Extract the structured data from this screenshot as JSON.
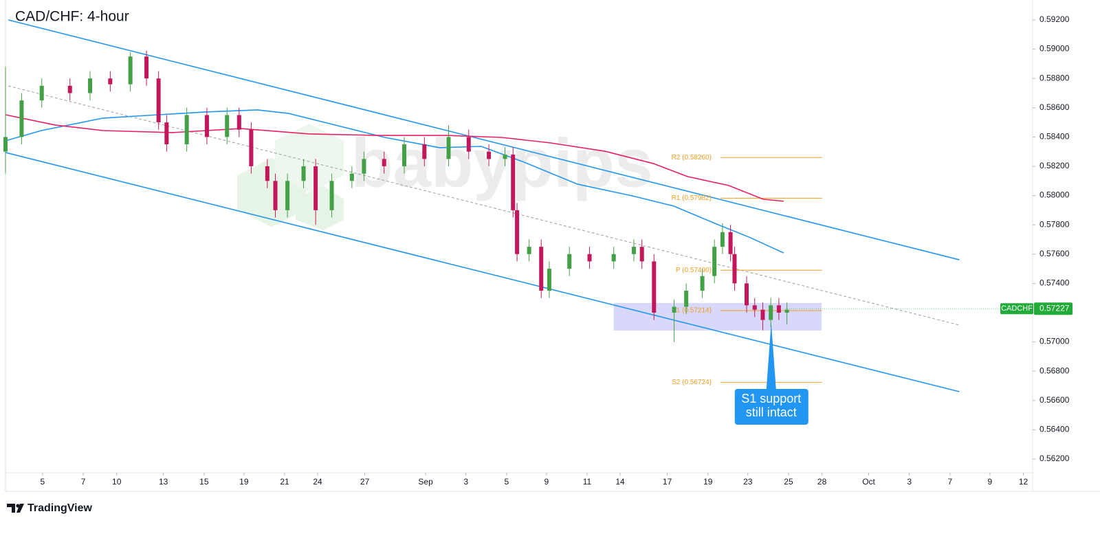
{
  "chart_data": {
    "type": "candlestick",
    "title": "CAD/CHF: 4-hour",
    "watermark": "babypips",
    "brand": "TradingView",
    "xlim": [
      0,
      255
    ],
    "ylim": [
      0.56106,
      0.59336
    ],
    "xticks": [
      {
        "value": 9.2,
        "label": "5"
      },
      {
        "value": 19.3,
        "label": "7"
      },
      {
        "value": 27.6,
        "label": "10"
      },
      {
        "value": 39.2,
        "label": "13"
      },
      {
        "value": 49.3,
        "label": "15"
      },
      {
        "value": 59.2,
        "label": "19"
      },
      {
        "value": 69.3,
        "label": "21"
      },
      {
        "value": 77.5,
        "label": "24"
      },
      {
        "value": 89.2,
        "label": "27"
      },
      {
        "value": 104.3,
        "label": "Sep"
      },
      {
        "value": 114.3,
        "label": "3"
      },
      {
        "value": 124.4,
        "label": "5"
      },
      {
        "value": 134.3,
        "label": "9"
      },
      {
        "value": 144.4,
        "label": "11"
      },
      {
        "value": 152.6,
        "label": "14"
      },
      {
        "value": 164.3,
        "label": "17"
      },
      {
        "value": 174.4,
        "label": "19"
      },
      {
        "value": 184.3,
        "label": "23"
      },
      {
        "value": 194.4,
        "label": "25"
      },
      {
        "value": 202.7,
        "label": "28"
      },
      {
        "value": 214.3,
        "label": "Oct"
      },
      {
        "value": 224.4,
        "label": "3"
      },
      {
        "value": 234.5,
        "label": "7"
      },
      {
        "value": 244.4,
        "label": "9"
      },
      {
        "value": 252.7,
        "label": "12"
      }
    ],
    "yticks": [
      {
        "value": 0.562,
        "label": "0.56200"
      },
      {
        "value": 0.564,
        "label": "0.56400"
      },
      {
        "value": 0.566,
        "label": "0.56600"
      },
      {
        "value": 0.568,
        "label": "0.56800"
      },
      {
        "value": 0.57,
        "label": "0.57000"
      },
      {
        "value": 0.572,
        "label": "0.57200"
      },
      {
        "value": 0.574,
        "label": "0.57400"
      },
      {
        "value": 0.576,
        "label": "0.57600"
      },
      {
        "value": 0.578,
        "label": "0.57800"
      },
      {
        "value": 0.58,
        "label": "0.58000"
      },
      {
        "value": 0.582,
        "label": "0.58200"
      },
      {
        "value": 0.584,
        "label": "0.58400"
      },
      {
        "value": 0.586,
        "label": "0.58600"
      },
      {
        "value": 0.588,
        "label": "0.58800"
      },
      {
        "value": 0.59,
        "label": "0.59000"
      },
      {
        "value": 0.592,
        "label": "0.59200"
      }
    ],
    "up_color": "#43a047",
    "down_color": "#c2185b",
    "x": [
      0,
      4,
      9,
      16,
      21,
      26,
      31,
      35,
      38,
      40,
      45,
      50,
      55,
      58,
      61,
      65,
      67,
      70,
      74,
      77,
      81,
      86,
      89,
      94,
      99,
      104,
      110,
      115,
      120,
      124,
      126,
      127,
      130,
      133,
      135,
      140,
      145,
      151,
      156,
      158,
      161,
      166,
      169,
      173,
      176,
      178,
      180,
      181,
      184,
      186,
      188,
      190,
      192,
      194
    ],
    "open": [
      0.583,
      0.584,
      0.5865,
      0.5875,
      0.587,
      0.588,
      0.5876,
      0.5895,
      0.588,
      0.585,
      0.5835,
      0.5855,
      0.584,
      0.5855,
      0.5845,
      0.582,
      0.581,
      0.579,
      0.581,
      0.582,
      0.579,
      0.581,
      0.5815,
      0.5825,
      0.582,
      0.5835,
      0.5825,
      0.584,
      0.583,
      0.5825,
      0.5828,
      0.579,
      0.576,
      0.5765,
      0.5735,
      0.575,
      0.576,
      0.5755,
      0.576,
      0.5765,
      0.5755,
      0.572,
      0.5724,
      0.5735,
      0.5745,
      0.5765,
      0.5775,
      0.576,
      0.574,
      0.5725,
      0.5722,
      0.5715,
      0.5725,
      0.572
    ],
    "high": [
      0.5888,
      0.587,
      0.588,
      0.588,
      0.5885,
      0.5885,
      0.5898,
      0.5899,
      0.5885,
      0.5855,
      0.586,
      0.586,
      0.586,
      0.586,
      0.585,
      0.5825,
      0.5815,
      0.5815,
      0.5825,
      0.5825,
      0.5815,
      0.582,
      0.583,
      0.583,
      0.584,
      0.584,
      0.5848,
      0.5845,
      0.5835,
      0.5833,
      0.5833,
      0.5795,
      0.577,
      0.577,
      0.5755,
      0.5765,
      0.5765,
      0.5765,
      0.577,
      0.577,
      0.576,
      0.5729,
      0.574,
      0.575,
      0.577,
      0.5781,
      0.578,
      0.5765,
      0.5745,
      0.573,
      0.5727,
      0.573,
      0.573,
      0.5727
    ],
    "low": [
      0.5815,
      0.5835,
      0.586,
      0.5865,
      0.5865,
      0.5871,
      0.5871,
      0.5875,
      0.5845,
      0.583,
      0.583,
      0.5835,
      0.5835,
      0.584,
      0.5815,
      0.5805,
      0.5785,
      0.5785,
      0.5805,
      0.578,
      0.5785,
      0.5805,
      0.581,
      0.5815,
      0.5815,
      0.582,
      0.582,
      0.5825,
      0.582,
      0.582,
      0.5785,
      0.5755,
      0.5755,
      0.573,
      0.573,
      0.5745,
      0.575,
      0.575,
      0.5755,
      0.575,
      0.5715,
      0.57,
      0.5719,
      0.573,
      0.574,
      0.576,
      0.5755,
      0.5735,
      0.572,
      0.5717,
      0.5708,
      0.571,
      0.5715,
      0.5712
    ],
    "close": [
      0.584,
      0.5865,
      0.5875,
      0.587,
      0.588,
      0.5876,
      0.5895,
      0.588,
      0.585,
      0.5835,
      0.5855,
      0.584,
      0.5855,
      0.5845,
      0.582,
      0.581,
      0.579,
      0.581,
      0.582,
      0.579,
      0.581,
      0.5815,
      0.5825,
      0.582,
      0.5835,
      0.5825,
      0.584,
      0.583,
      0.5825,
      0.5828,
      0.579,
      0.576,
      0.5765,
      0.5735,
      0.575,
      0.576,
      0.5755,
      0.576,
      0.5765,
      0.5755,
      0.572,
      0.5724,
      0.5735,
      0.5745,
      0.5765,
      0.5775,
      0.576,
      0.574,
      0.5725,
      0.5722,
      0.5715,
      0.5725,
      0.572,
      0.5722
    ],
    "trendlines": [
      {
        "x": [
          0.7,
          236.8
        ],
        "values": [
          0.592,
          0.57561
        ],
        "color": "#2196f3",
        "dashed": false
      },
      {
        "x": [
          0,
          236.8
        ],
        "values": [
          0.58294,
          0.5666
        ],
        "color": "#2196f3",
        "dashed": false
      },
      {
        "x": [
          0.7,
          236.8
        ],
        "values": [
          0.58749,
          0.57115
        ],
        "color": "#9e9e9e",
        "dashed": true
      }
    ],
    "moving_averages": [
      {
        "color": "#2196f3",
        "x": [
          0,
          8.9,
          24.2,
          37.9,
          49.8,
          62.6,
          70.3,
          80.5,
          94.2,
          107.8,
          118.1,
          128.3,
          142,
          155.6,
          165.9,
          176.1,
          184.6,
          193.2
        ],
        "values": [
          0.58374,
          0.58444,
          0.58529,
          0.58552,
          0.58571,
          0.58585,
          0.58561,
          0.58491,
          0.58397,
          0.58327,
          0.58336,
          0.58233,
          0.58078,
          0.57998,
          0.57928,
          0.5781,
          0.57716,
          0.57608
        ]
      },
      {
        "color": "#e91e63",
        "x": [
          0,
          12.3,
          24.2,
          41.3,
          58.4,
          75.4,
          92.5,
          109.6,
          123.2,
          135.2,
          148.8,
          160.8,
          169.3,
          179.5,
          188.1,
          193.2
        ],
        "values": [
          0.58552,
          0.58482,
          0.58444,
          0.5843,
          0.58458,
          0.58421,
          0.58411,
          0.58411,
          0.58397,
          0.5836,
          0.58303,
          0.58219,
          0.5813,
          0.58069,
          0.57975,
          0.57961
        ]
      }
    ],
    "level_color": "#f59d20",
    "level_x": [
      177.5,
      202.7
    ],
    "levels": [
      {
        "label": "R2 (0.58260)",
        "value": 0.5826
      },
      {
        "label": "R1 (0.57982)",
        "value": 0.57982
      },
      {
        "label": "P (0.57490)",
        "value": 0.5749
      },
      {
        "label": "S1 (0.57214)",
        "value": 0.57214
      },
      {
        "label": "S2 (0.56724)",
        "value": 0.56724
      }
    ],
    "zone": {
      "x": [
        151,
        202.6
      ],
      "values": [
        0.57078,
        0.57266
      ],
      "color": "#7b7ff0"
    },
    "annotation": {
      "lines": [
        "S1 support",
        "still intact"
      ],
      "x": 190.1,
      "value": 0.5713,
      "color": "#2196f3"
    },
    "last_price": {
      "symbol": "CADCHF",
      "value": 0.57227,
      "color": "#22ab38"
    }
  }
}
